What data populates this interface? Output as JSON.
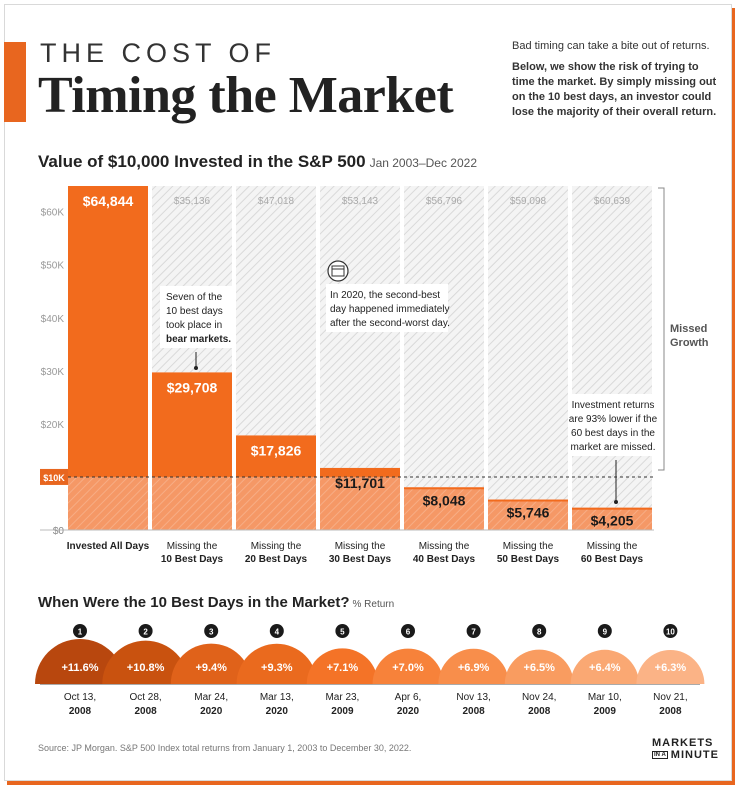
{
  "header": {
    "title_small": "THE COST OF",
    "title_big": "Timing the Market",
    "intro_1": "Bad timing can take a bite out of returns.",
    "intro_2": "Below, we show the risk of trying to time the market. By simply missing out on the 10 best days, an investor could lose the majority of their overall return."
  },
  "chart_data": [
    {
      "type": "bar",
      "title": "Value of $10,000 Invested in the S&P 500",
      "subtitle": "Jan 2003–Dec 2022",
      "categories": [
        "Invested All Days",
        "Missing the 10 Best Days",
        "Missing the 20 Best Days",
        "Missing the 30 Best Days",
        "Missing the 40 Best Days",
        "Missing the 50 Best Days",
        "Missing the 60 Best Days"
      ],
      "values": [
        64844,
        29708,
        17826,
        11701,
        8048,
        5746,
        4205
      ],
      "value_labels": [
        "$64,844",
        "$29,708",
        "$17,826",
        "$11,701",
        "$8,048",
        "$5,746",
        "$4,205"
      ],
      "missed_growth_labels": [
        "$35,136",
        "$47,018",
        "$53,143",
        "$56,796",
        "$59,098",
        "$60,639"
      ],
      "y_ticks": [
        0,
        10000,
        20000,
        30000,
        40000,
        50000,
        60000
      ],
      "y_tick_labels": [
        "$0",
        "$10K",
        "$20K",
        "$30K",
        "$40K",
        "$50K",
        "$60K"
      ],
      "ylim": [
        0,
        64844
      ],
      "reference_line": 10000,
      "bracket_label": "Missed Growth",
      "colors": {
        "bar": "#f26b1d",
        "bar_below_10k": "#f59866",
        "hatch": "#d9d9d9",
        "ref_badge": "#e8661f"
      },
      "annotations": {
        "a1": [
          "Seven of the",
          "10 best days",
          "took place in",
          "bear markets."
        ],
        "a2": [
          "In 2020, the second-best",
          "day happened immediately",
          "after the second-worst day."
        ],
        "a3": [
          "Investment returns",
          "are 93% lower if the",
          "60 best days in the",
          "market are missed."
        ]
      }
    },
    {
      "type": "table",
      "title": "When Were the 10 Best Days in the Market?",
      "subtitle": "% Return",
      "ranks": [
        "1",
        "2",
        "3",
        "4",
        "5",
        "6",
        "7",
        "8",
        "9",
        "10"
      ],
      "returns": [
        11.6,
        10.8,
        9.4,
        9.3,
        7.1,
        7.0,
        6.9,
        6.5,
        6.4,
        6.3
      ],
      "return_labels": [
        "+11.6%",
        "+10.8%",
        "+9.4%",
        "+9.3%",
        "+7.1%",
        "+7.0%",
        "+6.9%",
        "+6.5%",
        "+6.4%",
        "+6.3%"
      ],
      "dates_line1": [
        "Oct 13,",
        "Oct 28,",
        "Mar 24,",
        "Mar 13,",
        "Mar 23,",
        "Apr 6,",
        "Nov 13,",
        "Nov 24,",
        "Mar 10,",
        "Nov 21,"
      ],
      "dates_line2": [
        "2008",
        "2008",
        "2020",
        "2020",
        "2009",
        "2020",
        "2008",
        "2008",
        "2009",
        "2008"
      ],
      "colors": [
        "#b8470e",
        "#c9520f",
        "#e0621a",
        "#ea6a1e",
        "#f47327",
        "#f7823a",
        "#f88e4b",
        "#f99c60",
        "#faa873",
        "#fbb386"
      ]
    }
  ],
  "footer": {
    "source": "Source: JP Morgan. S&P 500 Index total returns from January 1, 2003 to December 30, 2022.",
    "logo_line1": "MARKETS",
    "logo_ina": "IN A",
    "logo_line2": "MINUTE"
  }
}
